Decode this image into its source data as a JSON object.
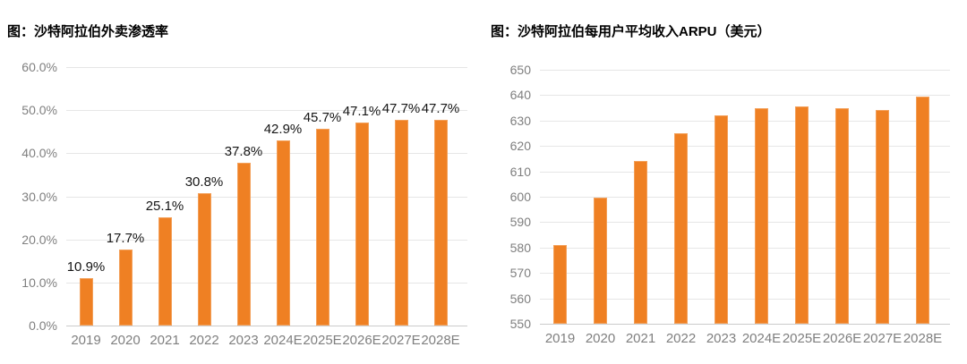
{
  "page": {
    "background": "#FFFFFF"
  },
  "colors": {
    "bar": "#EF8023",
    "axis_text": "#7F7F7F",
    "data_label": "#151515",
    "gridline": "#E6E6E6",
    "baseline": "#CBCBCB",
    "title_text": "#000000"
  },
  "chart_data": [
    {
      "type": "bar",
      "title": "图：沙特阿拉伯外卖渗透率",
      "categories": [
        "2019",
        "2020",
        "2021",
        "2022",
        "2023",
        "2024E",
        "2025E",
        "2026E",
        "2027E",
        "2028E"
      ],
      "values": [
        10.9,
        17.7,
        25.1,
        30.8,
        37.8,
        42.9,
        45.7,
        47.1,
        47.7,
        47.7
      ],
      "data_labels": [
        "10.9%",
        "17.7%",
        "25.1%",
        "30.8%",
        "37.8%",
        "42.9%",
        "45.7%",
        "47.1%",
        "47.7%",
        "47.7%"
      ],
      "ylim": [
        0,
        60
      ],
      "yticks": [
        0,
        10,
        20,
        30,
        40,
        50,
        60
      ],
      "ytick_labels": [
        "0.0%",
        "10.0%",
        "20.0%",
        "30.0%",
        "40.0%",
        "50.0%",
        "60.0%"
      ],
      "grid": true,
      "legend": null,
      "xlabel": "",
      "ylabel": ""
    },
    {
      "type": "bar",
      "title": "图：沙特阿拉伯每用户平均收入ARPU（美元）",
      "categories": [
        "2019",
        "2020",
        "2021",
        "2022",
        "2023",
        "2024E",
        "2025E",
        "2026E",
        "2027E",
        "2028E"
      ],
      "values": [
        581,
        599.5,
        614,
        625,
        632,
        635,
        635.5,
        635,
        634,
        639.5
      ],
      "data_labels": null,
      "ylim": [
        550,
        650
      ],
      "yticks": [
        550,
        560,
        570,
        580,
        590,
        600,
        610,
        620,
        630,
        640,
        650
      ],
      "ytick_labels": [
        "550",
        "560",
        "570",
        "580",
        "590",
        "600",
        "610",
        "620",
        "630",
        "640",
        "650"
      ],
      "grid": true,
      "legend": null,
      "xlabel": "",
      "ylabel": ""
    }
  ]
}
